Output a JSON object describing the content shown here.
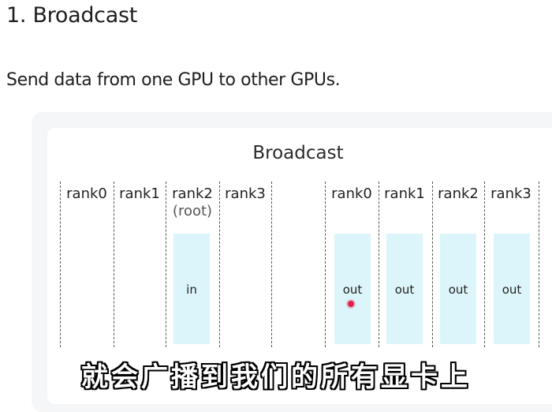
{
  "heading": "1. Broadcast",
  "description": "Send data from one GPU to other GPUs.",
  "diagram": {
    "title": "Broadcast",
    "before": {
      "ranks": [
        "rank0",
        "rank1",
        "rank2",
        "rank3"
      ],
      "root_label": "(root)",
      "buffer_label": "in"
    },
    "after": {
      "ranks": [
        "rank0",
        "rank1",
        "rank2",
        "rank3"
      ],
      "buffer_labels": [
        "out",
        "out",
        "out",
        "out"
      ]
    },
    "colors": {
      "buffer_fill": "#dcf5fa",
      "divider": "#555555"
    }
  },
  "subtitle": "就会广播到我们的所有显卡上"
}
